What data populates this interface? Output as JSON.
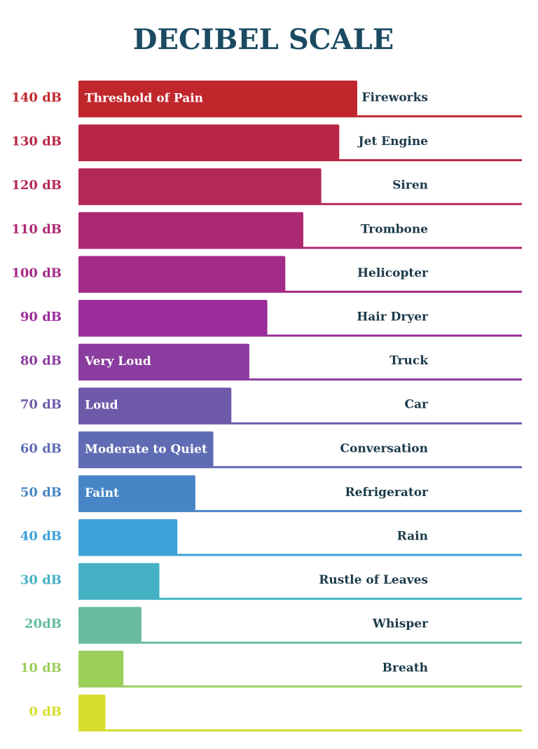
{
  "chart_data": {
    "type": "hbar",
    "title": "DECIBEL SCALE",
    "categories": [
      "140 dB",
      "130 dB",
      "120 dB",
      "110 dB",
      "100 dB",
      "90 dB",
      "80 dB",
      "70 dB",
      "60 dB",
      "50 dB",
      "40 dB",
      "30 dB",
      "20dB",
      "10 dB",
      "0 dB"
    ],
    "values": [
      140,
      130,
      120,
      110,
      100,
      90,
      80,
      70,
      60,
      50,
      40,
      30,
      20,
      10,
      0
    ],
    "colors": [
      "#c0272d",
      "#b82645",
      "#b42759",
      "#ad2873",
      "#a42a88",
      "#9a2d99",
      "#8a3d9e",
      "#6e5aa8",
      "#5f6cb3",
      "#4785c6",
      "#3ea0d8",
      "#44b2c4",
      "#66bc9c",
      "#9cce5c",
      "#d5de2c"
    ],
    "bar_labels": [
      "Threshold of Pain",
      null,
      null,
      null,
      null,
      null,
      "Very Loud",
      "Loud",
      "Moderate to Quiet",
      "Faint",
      null,
      null,
      null,
      null,
      null
    ],
    "sources": [
      "Fireworks",
      "Jet Engine",
      "Siren",
      "Trombone",
      "Helicopter",
      "Hair Dryer",
      "Truck",
      "Car",
      "Conversation",
      "Refrigerator",
      "Rain",
      "Rustle of Leaves",
      "Whisper",
      "Breath",
      null
    ],
    "xlim": [
      -15,
      140
    ]
  }
}
